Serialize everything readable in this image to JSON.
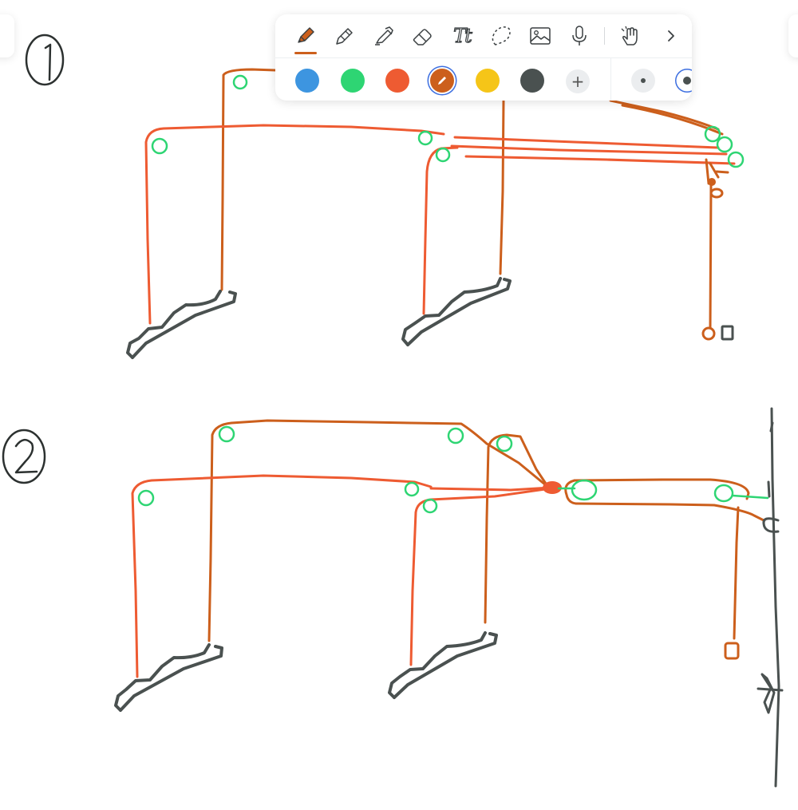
{
  "app": {
    "title": ""
  },
  "toolbar": {
    "tools": [
      {
        "name": "pen",
        "icon": "pen-icon",
        "selected": true
      },
      {
        "name": "pencil",
        "icon": "pencil-icon",
        "selected": false
      },
      {
        "name": "highlighter",
        "icon": "highlighter-icon",
        "selected": false
      },
      {
        "name": "eraser",
        "icon": "eraser-icon",
        "selected": false
      },
      {
        "name": "text",
        "icon": "text-icon",
        "selected": false
      },
      {
        "name": "lasso",
        "icon": "lasso-icon",
        "selected": false
      },
      {
        "name": "image",
        "icon": "image-icon",
        "selected": false
      },
      {
        "name": "microphone",
        "icon": "microphone-icon",
        "selected": false
      },
      {
        "name": "touch",
        "icon": "hand-touch-icon",
        "selected": false
      },
      {
        "name": "more",
        "icon": "chevron-right-icon",
        "selected": false
      }
    ],
    "text_tool_label": "Tt",
    "colors": [
      "#3d95e0",
      "#2ed573",
      "#ee5b32",
      "#cc5f1c",
      "#f5c518",
      "#4a5150"
    ],
    "selected_color": "#cc5f1c",
    "add_label": "+",
    "pen_sizes": [
      "small",
      "medium"
    ],
    "selected_size": "medium"
  },
  "canvas": {
    "ink_colors": {
      "orange": "#cc5f1c",
      "red": "#ee5b32",
      "green": "#2ed573",
      "gray": "#4a5150"
    }
  }
}
